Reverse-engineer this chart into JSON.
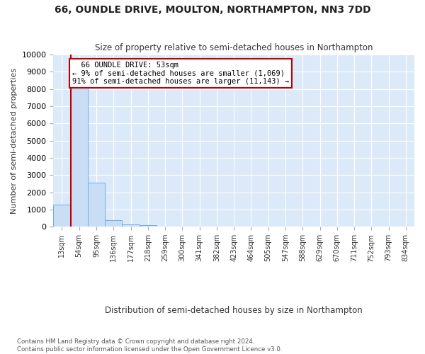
{
  "title": "66, OUNDLE DRIVE, MOULTON, NORTHAMPTON, NN3 7DD",
  "subtitle": "Size of property relative to semi-detached houses in Northampton",
  "xlabel": "Distribution of semi-detached houses by size in Northampton",
  "ylabel": "Number of semi-detached properties",
  "footer_line1": "Contains HM Land Registry data © Crown copyright and database right 2024.",
  "footer_line2": "Contains public sector information licensed under the Open Government Licence v3.0.",
  "bar_labels": [
    "13sqm",
    "54sqm",
    "95sqm",
    "136sqm",
    "177sqm",
    "218sqm",
    "259sqm",
    "300sqm",
    "341sqm",
    "382sqm",
    "423sqm",
    "464sqm",
    "505sqm",
    "547sqm",
    "588sqm",
    "629sqm",
    "670sqm",
    "711sqm",
    "752sqm",
    "793sqm",
    "834sqm"
  ],
  "bar_values": [
    1300,
    8050,
    2550,
    380,
    130,
    90,
    0,
    0,
    0,
    0,
    0,
    0,
    0,
    0,
    0,
    0,
    0,
    0,
    0,
    0,
    0
  ],
  "bar_color": "#c9ddf5",
  "bar_edge_color": "#6aaee8",
  "highlight_color": "#c00000",
  "property_label": "66 OUNDLE DRIVE: 53sqm",
  "pct_smaller": 9,
  "count_smaller": 1069,
  "pct_larger": 91,
  "count_larger": 11143,
  "ylim": [
    0,
    10000
  ],
  "background_color": "#dce9f8",
  "grid_color": "#ffffff",
  "fig_bg_color": "#ffffff",
  "vline_x": 0.5
}
